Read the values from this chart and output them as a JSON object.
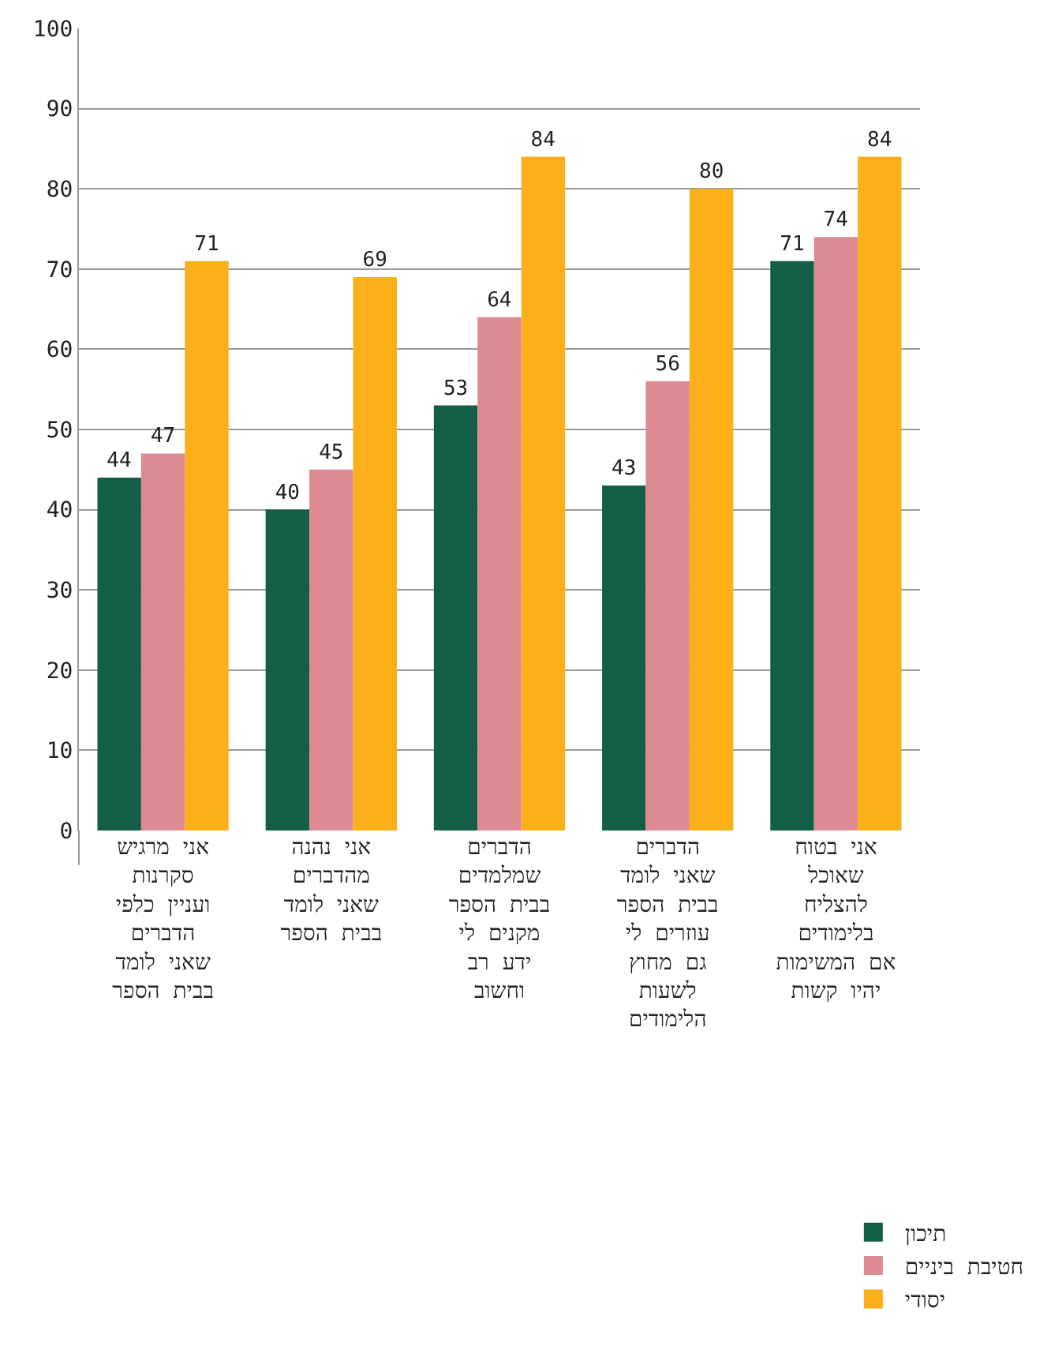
{
  "chart_data": {
    "type": "bar",
    "categories": [
      "אני מרגיש\nסקרנות\nועניין כלפי\nהדברים\nשאני לומד\nבבית הספר",
      "אני נהנה\nמהדברים\nשאני לומד\nבבית הספר",
      "הדברים\nשמלמדים\nבבית הספר\nמקנים לי\nידע רב\nוחשוב",
      "הדברים\nשאני לומד\nבבית הספר\nעוזרים לי\nגם מחוץ\nלשעות\nהלימודים",
      "אני בטוח\nשאוכל\nלהצליח\nבלימודים\nאם המשימות\nיהיו קשות"
    ],
    "series": [
      {
        "name": "תיכון",
        "color": "#135e46",
        "values": [
          44,
          40,
          53,
          43,
          71
        ]
      },
      {
        "name": "חטיבת ביניים",
        "color": "#de8a93",
        "values": [
          47,
          45,
          64,
          56,
          74
        ]
      },
      {
        "name": "יסודי",
        "color": "#fbaf1a",
        "values": [
          71,
          69,
          84,
          80,
          84
        ]
      }
    ],
    "ylim": [
      0,
      100
    ],
    "yticks": [
      0,
      10,
      20,
      30,
      40,
      50,
      60,
      70,
      80,
      90,
      100
    ],
    "grid": "y",
    "legend": "bottom right",
    "data_labels": true
  }
}
